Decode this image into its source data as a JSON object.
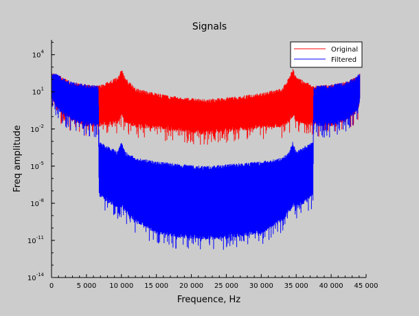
{
  "chart_data": {
    "type": "line",
    "title": "Signals",
    "xlabel": "Frequence, Hz",
    "ylabel": "Freq amplitude",
    "yscale": "log",
    "xlim": [
      0,
      45000
    ],
    "ylim_exponents": [
      -14,
      6
    ],
    "x_ticks": [
      0,
      5000,
      10000,
      15000,
      20000,
      25000,
      30000,
      35000,
      40000,
      45000
    ],
    "x_tick_labels": [
      "0",
      "5 000",
      "10 000",
      "15 000",
      "20 000",
      "25 000",
      "30 000",
      "35 000",
      "40 000",
      "45 000"
    ],
    "y_ticks": [
      {
        "base": "10",
        "exp": "4",
        "value": 4
      },
      {
        "base": "10",
        "exp": "1",
        "value": 1
      },
      {
        "base": "10",
        "exp": "-2",
        "value": -2
      },
      {
        "base": "10",
        "exp": "-5",
        "value": -5
      },
      {
        "base": "10",
        "exp": "-8",
        "value": -8
      },
      {
        "base": "10",
        "exp": "-11",
        "value": -11
      },
      {
        "base": "10",
        "exp": "-14",
        "value": -14
      }
    ],
    "grid": false,
    "legend_position": "top-right",
    "series": [
      {
        "name": "Original",
        "color": "#ff0000",
        "envelope_x": [
          0,
          600,
          1500,
          3000,
          5000,
          6700,
          9500,
          10000,
          10500,
          12000,
          15000,
          18000,
          22000,
          26000,
          30000,
          33000,
          34000,
          34500,
          35000,
          37500,
          40000,
          42000,
          43500,
          44000,
          44100
        ],
        "envelope_upper_log10": [
          2.5,
          2.5,
          2.2,
          1.8,
          1.6,
          1.5,
          2.2,
          2.9,
          2.2,
          1.3,
          0.9,
          0.6,
          0.4,
          0.6,
          0.9,
          1.3,
          2.2,
          2.9,
          2.2,
          1.5,
          1.6,
          1.8,
          2.2,
          2.5,
          2.5
        ],
        "envelope_lower_log10": [
          0.5,
          -0.2,
          -0.8,
          -1.4,
          -1.8,
          -1.8,
          -1.6,
          -1.0,
          -1.5,
          -1.9,
          -2.0,
          -2.2,
          -2.5,
          -2.2,
          -2.0,
          -1.9,
          -1.5,
          -1.0,
          -1.6,
          -1.8,
          -1.8,
          -1.4,
          -0.8,
          -0.2,
          0.5
        ]
      },
      {
        "name": "Filtered",
        "color": "#0000ff",
        "envelope_x": [
          0,
          600,
          1500,
          3000,
          5000,
          6700,
          6800,
          9500,
          10000,
          10500,
          12000,
          15000,
          18000,
          22000,
          26000,
          30000,
          33000,
          34000,
          34500,
          35000,
          37400,
          37500,
          40000,
          42000,
          43500,
          44000,
          44100
        ],
        "envelope_upper_log10": [
          2.5,
          2.5,
          2.2,
          1.8,
          1.6,
          1.5,
          -3.0,
          -3.8,
          -3.0,
          -3.8,
          -4.3,
          -4.6,
          -4.8,
          -5.0,
          -4.8,
          -4.6,
          -4.3,
          -3.8,
          -3.0,
          -3.8,
          -3.0,
          1.5,
          1.6,
          1.8,
          2.2,
          2.5,
          2.5
        ],
        "envelope_lower_log10": [
          0.5,
          -0.2,
          -0.8,
          -1.4,
          -1.8,
          -1.8,
          -7.5,
          -8.5,
          -8.3,
          -8.8,
          -9.5,
          -10.5,
          -10.8,
          -11.0,
          -10.8,
          -10.5,
          -9.5,
          -8.8,
          -8.3,
          -8.5,
          -7.5,
          -1.8,
          -1.8,
          -1.4,
          -0.8,
          -0.2,
          0.5
        ]
      }
    ]
  }
}
